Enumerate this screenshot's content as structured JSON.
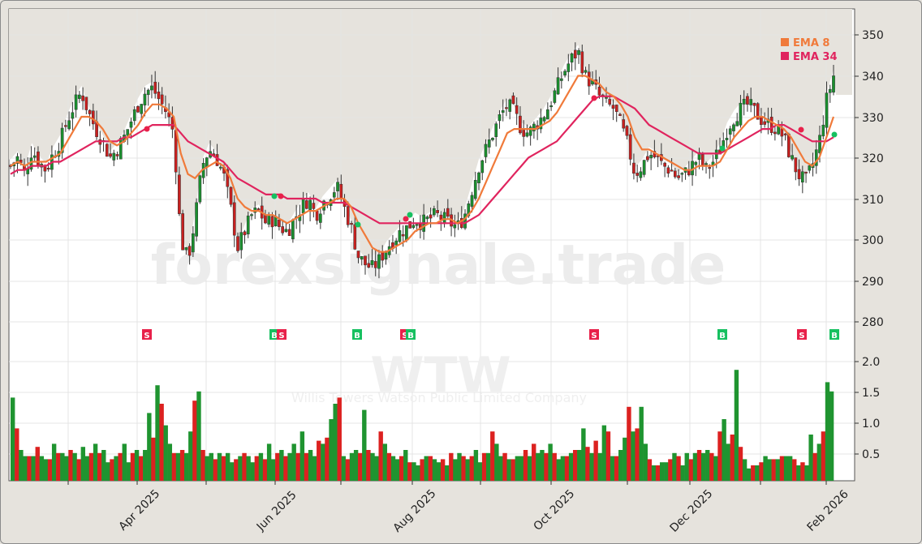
{
  "chart_data": {
    "type": "candlestick",
    "ticker": "WTW",
    "company": "Willis Towers Watson Public Limited Company",
    "watermark": "forexsignale.trade",
    "price_axis": {
      "ticks": [
        280,
        290,
        300,
        310,
        320,
        330,
        340,
        350
      ],
      "ylim": [
        273,
        356
      ],
      "side": "right"
    },
    "volume_axis": {
      "ticks": [
        0.5,
        1.0,
        1.5,
        2.0
      ],
      "ylim": [
        0.1,
        2.15
      ],
      "unit": "millions"
    },
    "x_axis": {
      "tick_labels": [
        "Apr 2025",
        "Jun 2025",
        "Aug 2025",
        "Oct 2025",
        "Dec 2025",
        "Feb 2026"
      ],
      "rotation": 45
    },
    "legend": [
      {
        "label": "EMA 8",
        "color": "#f07a3a"
      },
      {
        "label": "EMA 34",
        "color": "#e0245e"
      }
    ],
    "signals": [
      {
        "type": "S",
        "approx_date": "2025-04-03",
        "color": "#e8214a"
      },
      {
        "type": "B",
        "approx_date": "2025-05-30",
        "color": "#16c060"
      },
      {
        "type": "S",
        "approx_date": "2025-06-02",
        "color": "#e8214a"
      },
      {
        "type": "B",
        "approx_date": "2025-07-01",
        "color": "#16c060"
      },
      {
        "type": "S",
        "approx_date": "2025-07-28",
        "color": "#e8214a"
      },
      {
        "type": "B",
        "approx_date": "2025-07-30",
        "color": "#16c060"
      },
      {
        "type": "S",
        "approx_date": "2025-10-21",
        "color": "#e8214a"
      },
      {
        "type": "B",
        "approx_date": "2025-12-17",
        "color": "#16c060"
      },
      {
        "type": "S",
        "approx_date": "2026-01-21",
        "color": "#e8214a"
      },
      {
        "type": "B",
        "approx_date": "2026-02-03",
        "color": "#16c060"
      }
    ],
    "close_path": [
      318,
      320,
      316,
      322,
      319,
      317,
      321,
      324,
      329,
      333,
      336,
      331,
      327,
      324,
      320,
      322,
      325,
      329,
      333,
      336,
      337,
      334,
      331,
      326,
      300,
      295,
      305,
      318,
      322,
      320,
      316,
      308,
      298,
      302,
      306,
      307,
      304,
      305,
      303,
      302,
      305,
      308,
      310,
      306,
      309,
      311,
      313,
      308,
      303,
      296,
      294,
      293,
      295,
      298,
      300,
      302,
      303,
      305,
      304,
      305,
      306,
      305,
      304,
      303,
      306,
      312,
      318,
      322,
      326,
      330,
      333,
      331,
      327,
      326,
      328,
      330,
      333,
      337,
      341,
      344,
      346,
      340,
      338,
      335,
      333,
      332,
      328,
      323,
      316,
      318,
      321,
      320,
      318,
      317,
      315,
      316,
      318,
      320,
      317,
      319,
      322,
      327,
      330,
      332,
      333,
      331,
      329,
      328,
      327,
      325,
      320,
      316,
      314,
      318,
      324,
      334,
      340
    ],
    "ema8": [
      318,
      319,
      318,
      319,
      319,
      319,
      320,
      321,
      324,
      327,
      330,
      330,
      329,
      327,
      324,
      323,
      324,
      326,
      328,
      331,
      333,
      333,
      332,
      330,
      321,
      316,
      315,
      317,
      318,
      319,
      318,
      315,
      310,
      308,
      307,
      307,
      306,
      306,
      305,
      304,
      305,
      306,
      307,
      307,
      308,
      309,
      310,
      310,
      308,
      304,
      301,
      298,
      297,
      297,
      298,
      299,
      300,
      302,
      303,
      304,
      304,
      305,
      305,
      304,
      305,
      307,
      310,
      314,
      318,
      322,
      326,
      327,
      327,
      327,
      327,
      328,
      329,
      331,
      334,
      337,
      340,
      340,
      339,
      338,
      336,
      335,
      333,
      330,
      325,
      322,
      322,
      321,
      320,
      319,
      318,
      317,
      317,
      318,
      318,
      318,
      319,
      322,
      325,
      327,
      329,
      330,
      330,
      329,
      328,
      327,
      325,
      322,
      319,
      318,
      320,
      325,
      330
    ],
    "ema34": [
      316,
      317,
      317,
      318,
      318,
      318,
      319,
      319,
      320,
      321,
      322,
      323,
      324,
      324,
      324,
      324,
      325,
      325,
      326,
      327,
      328,
      328,
      328,
      328,
      326,
      324,
      323,
      322,
      321,
      320,
      319,
      317,
      315,
      314,
      313,
      312,
      311,
      311,
      311,
      310,
      310,
      310,
      310,
      310,
      309,
      309,
      309,
      309,
      308,
      307,
      306,
      305,
      304,
      304,
      304,
      304,
      304,
      304,
      304,
      304,
      304,
      304,
      304,
      304,
      304,
      305,
      306,
      308,
      310,
      312,
      314,
      316,
      318,
      320,
      321,
      322,
      323,
      324,
      326,
      328,
      330,
      332,
      334,
      335,
      335,
      335,
      334,
      333,
      332,
      330,
      328,
      327,
      326,
      325,
      324,
      323,
      322,
      321,
      321,
      321,
      321,
      322,
      323,
      324,
      325,
      326,
      327,
      327,
      328,
      328,
      327,
      326,
      325,
      324,
      324,
      324,
      325
    ],
    "volume": [
      1.45,
      0.95,
      0.6,
      0.5,
      0.5,
      0.5,
      0.65,
      0.5,
      0.45,
      0.45,
      0.7,
      0.55,
      0.55,
      0.5,
      0.6,
      0.55,
      0.45,
      0.65,
      0.5,
      0.55,
      0.7,
      0.55,
      0.6,
      0.4,
      0.45,
      0.5,
      0.55,
      0.7,
      0.4,
      0.55,
      0.6,
      0.5,
      0.6,
      1.2,
      0.8,
      1.65,
      1.35,
      1.0,
      0.7,
      0.55,
      0.55,
      0.6,
      0.55,
      0.9,
      1.4,
      1.55,
      0.6,
      0.5,
      0.55,
      0.45,
      0.55,
      0.5,
      0.55,
      0.4,
      0.45,
      0.5,
      0.55,
      0.5,
      0.4,
      0.5,
      0.55,
      0.45,
      0.7,
      0.45,
      0.55,
      0.6,
      0.5,
      0.55,
      0.7,
      0.55,
      0.9,
      0.55,
      0.6,
      0.5,
      0.75,
      0.7,
      0.8,
      1.1,
      1.35,
      1.45,
      0.5,
      0.45,
      0.55,
      0.6,
      0.55,
      1.25,
      0.6,
      0.55,
      0.5,
      0.9,
      0.7,
      0.55,
      0.5,
      0.45,
      0.5,
      0.6,
      0.4,
      0.4,
      0.35,
      0.45,
      0.5,
      0.5,
      0.45,
      0.4,
      0.45,
      0.35,
      0.55,
      0.45,
      0.55,
      0.5,
      0.45,
      0.5,
      0.6,
      0.4,
      0.55,
      0.55,
      0.9,
      0.7,
      0.5,
      0.55,
      0.45,
      0.45,
      0.5,
      0.5,
      0.6,
      0.5,
      0.7,
      0.55,
      0.6,
      0.55,
      0.7,
      0.55,
      0.45,
      0.5,
      0.5,
      0.55,
      0.6,
      0.6,
      0.95,
      0.65,
      0.55,
      0.75,
      0.55,
      1.0,
      0.9,
      0.5,
      0.5,
      0.6,
      0.8,
      1.3,
      0.9,
      0.95,
      1.3,
      0.7,
      0.45,
      0.35,
      0.35,
      0.4,
      0.4,
      0.45,
      0.55,
      0.5,
      0.35,
      0.55,
      0.45,
      0.55,
      0.6,
      0.55,
      0.6,
      0.55,
      0.5,
      0.9,
      1.1,
      0.7,
      0.85,
      1.9,
      0.65,
      0.45,
      0.3,
      0.35,
      0.35,
      0.4,
      0.5,
      0.45,
      0.45,
      0.45,
      0.5,
      0.5,
      0.5,
      0.45,
      0.35,
      0.4,
      0.35,
      0.85,
      0.55,
      0.7,
      0.9,
      1.7,
      1.55
    ]
  },
  "axis_labels": {
    "price": [
      "350",
      "340",
      "330",
      "320",
      "310",
      "300",
      "290",
      "280"
    ],
    "volume": [
      "2.0",
      "1.5",
      "1.0",
      "0.5"
    ],
    "dates": [
      "Apr 2025",
      "Jun 2025",
      "Aug 2025",
      "Oct 2025",
      "Dec 2025",
      "Feb 2026"
    ]
  },
  "legend": {
    "ema8": "EMA 8",
    "ema34": "EMA 34"
  },
  "watermark": {
    "site": "forexsignale.trade",
    "ticker": "WTW",
    "company": "Willis Towers Watson Public Limited Company"
  },
  "colors": {
    "up": "#1a8f2e",
    "down": "#c9201f",
    "vol_up": "#1f9430",
    "vol_down": "#dc2120",
    "ema8": "#f07a3a",
    "ema34": "#e0245e",
    "buy": "#16c060",
    "sell": "#e8214a"
  }
}
